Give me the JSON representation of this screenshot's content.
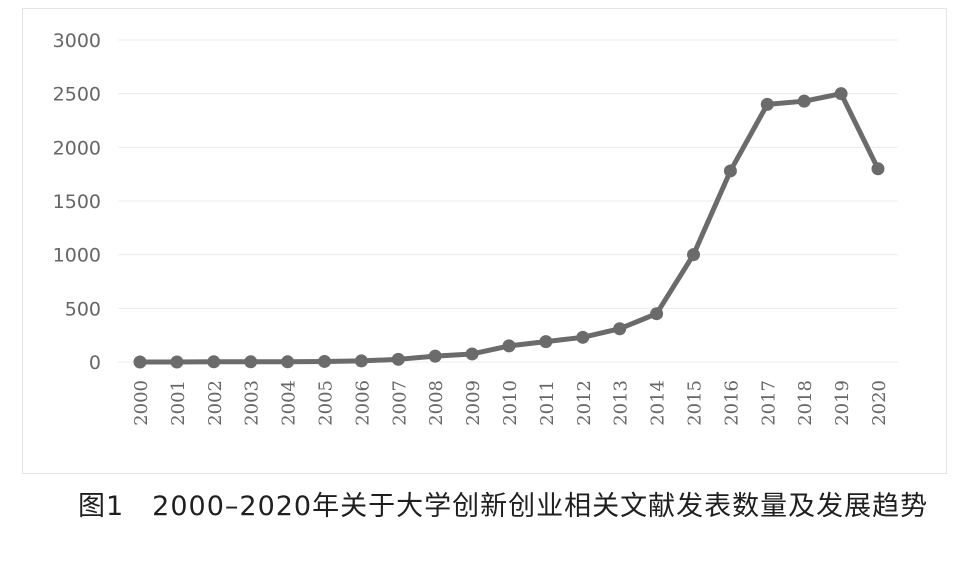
{
  "chart_data": {
    "type": "line",
    "title": "",
    "xlabel": "",
    "ylabel": "",
    "categories": [
      "2000",
      "2001",
      "2002",
      "2003",
      "2004",
      "2005",
      "2006",
      "2007",
      "2008",
      "2009",
      "2010",
      "2011",
      "2012",
      "2013",
      "2014",
      "2015",
      "2016",
      "2017",
      "2018",
      "2019",
      "2020"
    ],
    "series": [
      {
        "values": [
          0,
          0,
          2,
          2,
          2,
          5,
          10,
          25,
          55,
          75,
          150,
          190,
          230,
          310,
          450,
          1000,
          1780,
          2400,
          2430,
          2500,
          1800
        ]
      }
    ],
    "ylim": [
      0,
      3000
    ],
    "yticks": [
      0,
      500,
      1000,
      1500,
      2000,
      2500,
      3000
    ],
    "grid": true,
    "legend": "none",
    "colors": {
      "line": "#6b6b6b",
      "marker": "#6b6b6b",
      "grid": "#ececec",
      "tick_text": "#666666"
    }
  },
  "caption": "图1　2000–2020年关于大学创新创业相关文献发表数量及发展趋势"
}
